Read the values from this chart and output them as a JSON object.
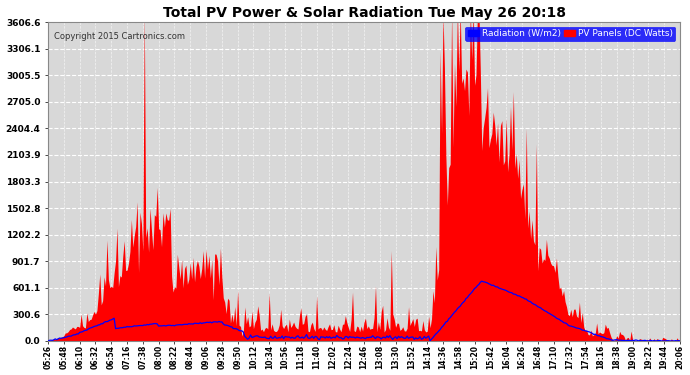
{
  "title": "Total PV Power & Solar Radiation Tue May 26 20:18",
  "copyright": "Copyright 2015 Cartronics.com",
  "legend_radiation": "Radiation (W/m2)",
  "legend_pv": "PV Panels (DC Watts)",
  "yticks": [
    0.0,
    300.6,
    601.1,
    901.7,
    1202.2,
    1502.8,
    1803.3,
    2103.9,
    2404.4,
    2705.0,
    3005.5,
    3306.1,
    3606.6
  ],
  "ymax": 3606.6,
  "bg_color": "#ffffff",
  "plot_bg_color": "#d8d8d8",
  "grid_color": "#ffffff",
  "red_fill": "#ff0000",
  "blue_line": "#0000ff",
  "title_color": "#000000"
}
